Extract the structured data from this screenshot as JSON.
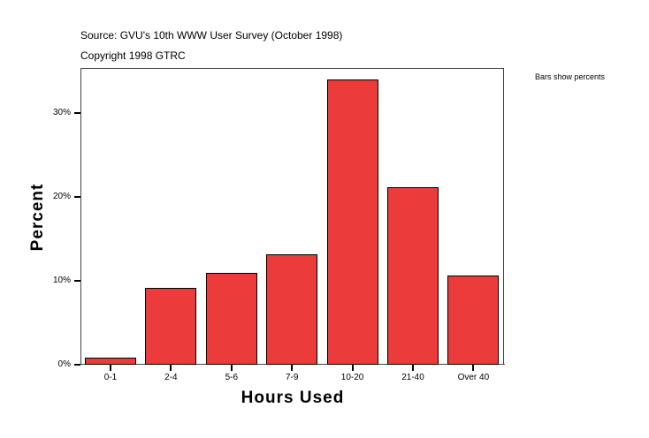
{
  "header": {
    "source": "Source: GVU's 10th WWW User Survey (October 1998)",
    "copyright": "Copyright 1998 GTRC"
  },
  "note": "Bars show percents",
  "chart_data": {
    "type": "bar",
    "title": "",
    "xlabel": "Hours Used",
    "ylabel": "Percent",
    "categories": [
      "0-1",
      "2-4",
      "5-6",
      "7-9",
      "10-20",
      "21-40",
      "Over 40"
    ],
    "values": [
      0.8,
      9.2,
      10.9,
      13.2,
      34.0,
      21.2,
      10.6
    ],
    "unit": "%",
    "ylim": [
      0,
      35.4
    ],
    "yticks": [
      "0%",
      "10%",
      "20%",
      "30%"
    ],
    "grid": false,
    "legend": "none",
    "bar_color": "#ec3b3b",
    "annotation": "Bars show percents"
  }
}
